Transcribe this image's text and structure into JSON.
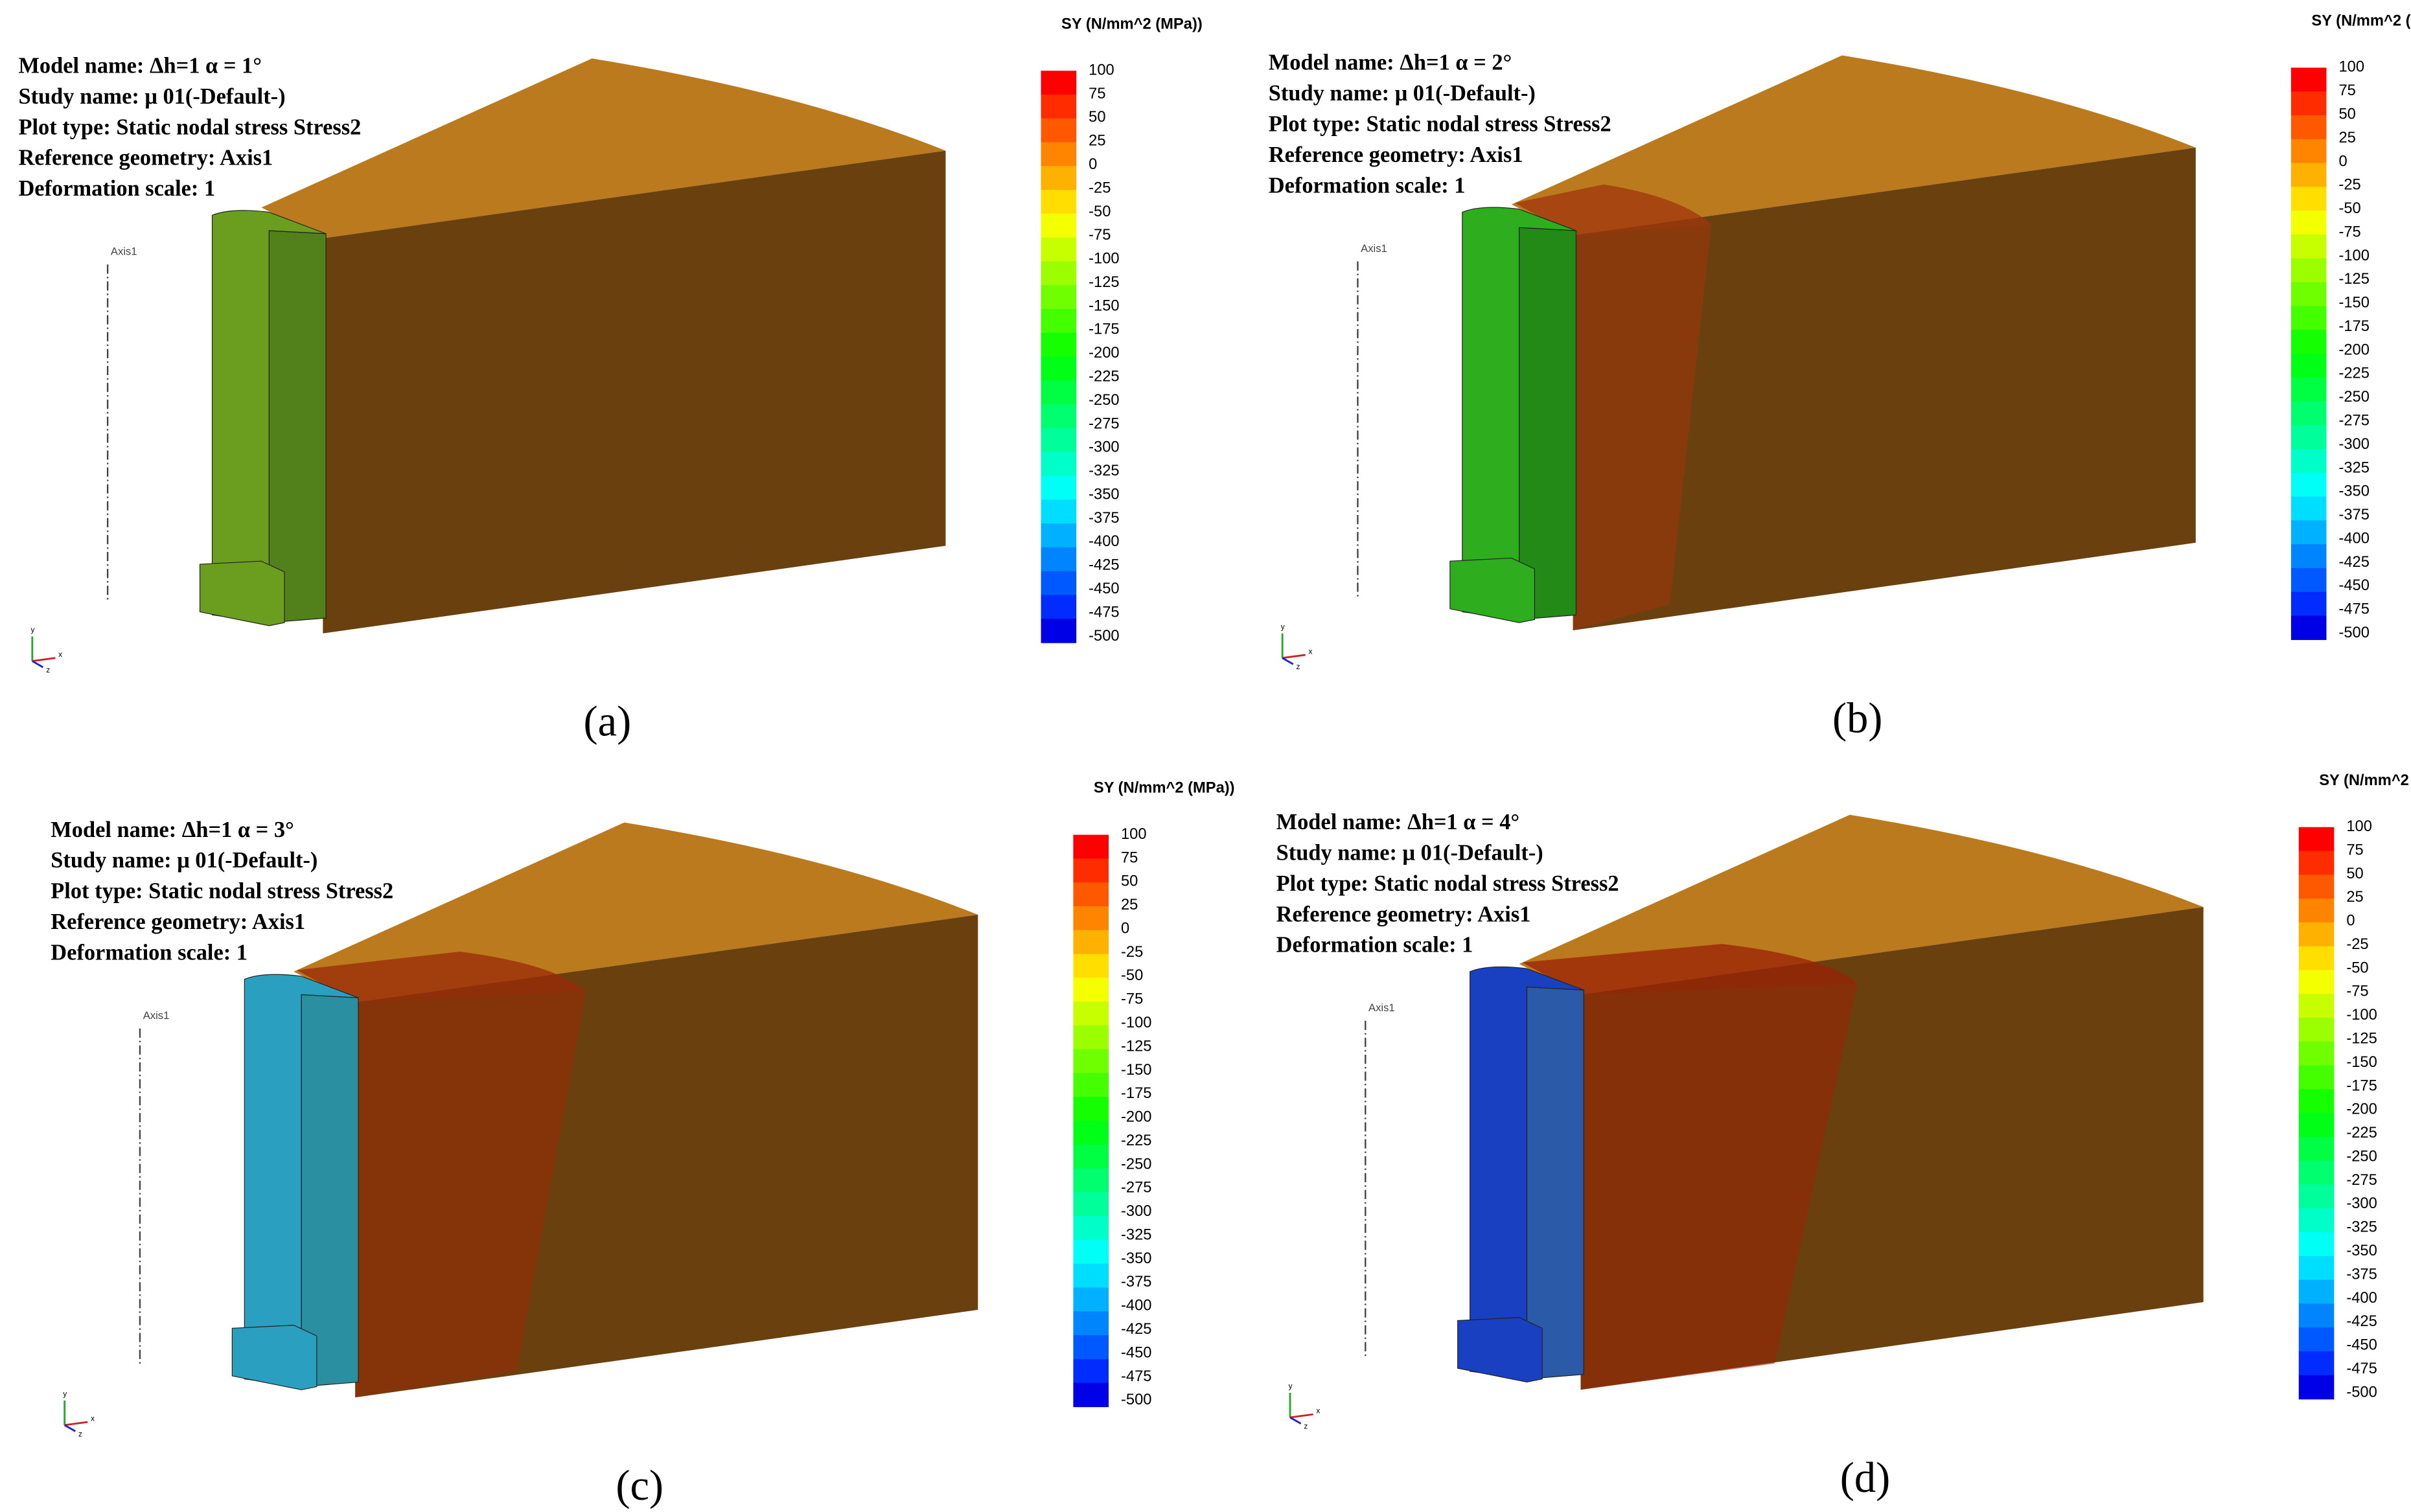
{
  "colorbar": {
    "title": "SY (N/mm^2 (MPa))",
    "labels": [
      100,
      75,
      50,
      25,
      0,
      -25,
      -50,
      -75,
      -100,
      -125,
      -150,
      -175,
      -200,
      -225,
      -250,
      -275,
      -300,
      -325,
      -350,
      -375,
      -400,
      -425,
      -450,
      -475,
      -500
    ]
  },
  "panels": [
    {
      "label": "(a)",
      "axis": "Axis1",
      "triad": [
        "y",
        "x",
        "z"
      ],
      "info": [
        "Model name: Δh=1 α = 1°",
        "Study name: μ 01(-Default-)",
        "Plot type: Static nodal stress Stress2",
        "Reference geometry: Axis1",
        "Deformation scale: 1"
      ]
    },
    {
      "label": "(b)",
      "axis": "Axis1",
      "triad": [
        "y",
        "x",
        "z"
      ],
      "info": [
        "Model name: Δh=1 α = 2°",
        "Study name: μ 01(-Default-)",
        "Plot type: Static nodal stress Stress2",
        "Reference geometry: Axis1",
        "Deformation scale: 1"
      ]
    },
    {
      "label": "(c)",
      "axis": "Axis1",
      "triad": [
        "y",
        "x",
        "z"
      ],
      "info": [
        "Model name: Δh=1 α = 3°",
        "Study name: μ 01(-Default-)",
        "Plot type: Static nodal stress Stress2",
        "Reference geometry: Axis1",
        "Deformation scale: 1"
      ]
    },
    {
      "label": "(d)",
      "axis": "Axis1",
      "triad": [
        "y",
        "x",
        "z"
      ],
      "info": [
        "Model name: Δh=1 α = 4°",
        "Study name: μ 01(-Default-)",
        "Plot type: Static nodal stress Stress2",
        "Reference geometry: Axis1",
        "Deformation scale: 1"
      ]
    }
  ]
}
